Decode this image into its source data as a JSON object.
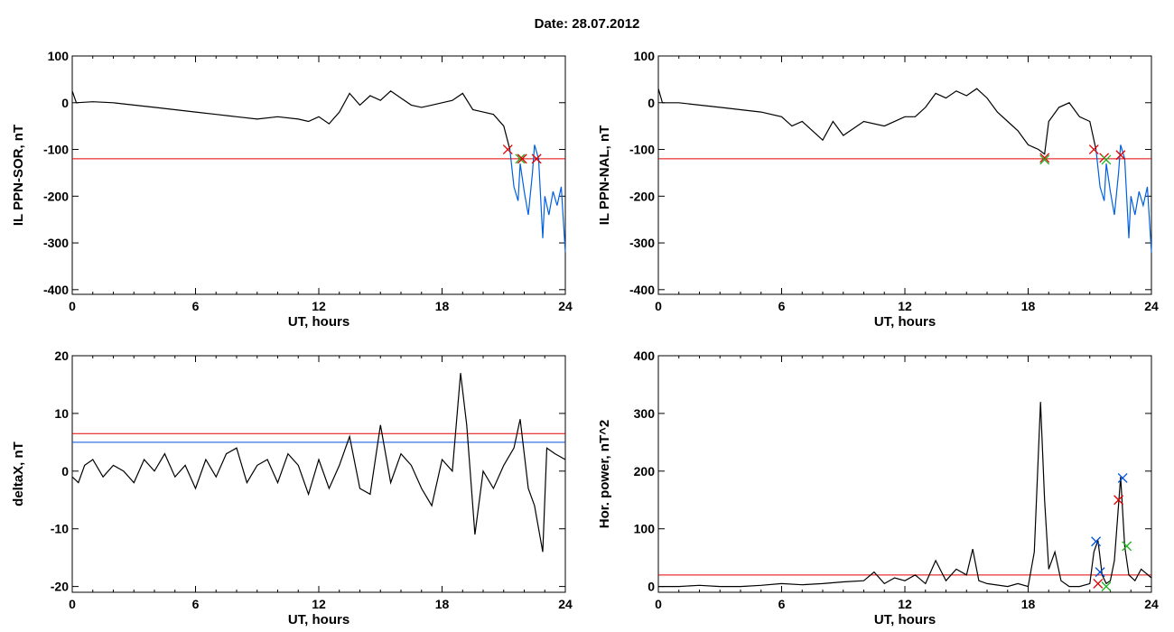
{
  "header": {
    "title": "Date:  28.07.2012"
  },
  "colors": {
    "trace": "#000000",
    "threshold_red": "#e00000",
    "threshold_blue": "#0050e0",
    "highlight": "#0060e0",
    "marker_green": "#20b020"
  },
  "chart_data": [
    {
      "type": "line",
      "xlabel": "UT, hours",
      "ylabel": "IL PPN-SOR, nT",
      "xlim": [
        0,
        24
      ],
      "ylim": [
        -410,
        100
      ],
      "xticks": [
        0,
        6,
        12,
        18,
        24
      ],
      "xtick_labels": [
        "0",
        "6",
        "12",
        "18",
        "24"
      ],
      "yticks": [
        100,
        0,
        -100,
        -200,
        -300,
        -400
      ],
      "ytick_labels": [
        "100",
        "0",
        "-100",
        "-200",
        "-300",
        "-400"
      ],
      "thresholds": [
        {
          "value": -120,
          "color": "#e00000"
        }
      ],
      "series": [
        {
          "color": "#000000",
          "x": [
            0,
            0.2,
            1,
            2,
            3,
            4,
            5,
            6,
            7,
            8,
            9,
            10,
            11,
            11.5,
            12,
            12.5,
            13,
            13.5,
            14,
            14.5,
            15,
            15.5,
            16,
            16.5,
            17,
            17.5,
            18,
            18.5,
            19,
            19.5,
            20,
            20.5,
            21,
            21.3
          ],
          "y": [
            25,
            0,
            2,
            0,
            -5,
            -10,
            -15,
            -20,
            -25,
            -30,
            -35,
            -30,
            -35,
            -40,
            -30,
            -45,
            -20,
            20,
            -5,
            15,
            5,
            25,
            10,
            -5,
            -10,
            -5,
            0,
            5,
            20,
            -15,
            -20,
            -25,
            -50,
            -100
          ]
        },
        {
          "color": "#0060e0",
          "x": [
            21.3,
            21.5,
            21.7,
            21.8,
            22,
            22.2,
            22.4,
            22.5,
            22.7,
            22.9,
            23,
            23.2,
            23.4,
            23.6,
            23.8,
            24
          ],
          "y": [
            -100,
            -180,
            -210,
            -130,
            -190,
            -240,
            -150,
            -90,
            -120,
            -290,
            -200,
            -240,
            -190,
            -220,
            -180,
            -320
          ]
        }
      ],
      "markers": [
        {
          "x": 21.2,
          "y": -100,
          "color": "#e00000"
        },
        {
          "x": 21.8,
          "y": -120,
          "color": "#20b020"
        },
        {
          "x": 21.9,
          "y": -120,
          "color": "#e00000"
        },
        {
          "x": 22.6,
          "y": -120,
          "color": "#e00000"
        }
      ]
    },
    {
      "type": "line",
      "xlabel": "UT, hours",
      "ylabel": "IL PPN-NAL, nT",
      "xlim": [
        0,
        24
      ],
      "ylim": [
        -410,
        100
      ],
      "xticks": [
        0,
        6,
        12,
        18,
        24
      ],
      "xtick_labels": [
        "0",
        "6",
        "12",
        "18",
        "24"
      ],
      "yticks": [
        100,
        0,
        -100,
        -200,
        -300,
        -400
      ],
      "ytick_labels": [
        "100",
        "0",
        "-100",
        "-200",
        "-300",
        "-400"
      ],
      "thresholds": [
        {
          "value": -120,
          "color": "#e00000"
        }
      ],
      "series": [
        {
          "color": "#000000",
          "x": [
            0,
            0.2,
            1,
            2,
            3,
            4,
            5,
            6,
            6.5,
            7,
            7.5,
            8,
            8.5,
            9,
            10,
            11,
            12,
            12.5,
            13,
            13.5,
            14,
            14.5,
            15,
            15.5,
            16,
            16.5,
            17,
            17.5,
            18,
            18.5,
            18.8,
            19,
            19.5,
            20,
            20.5,
            21,
            21.3
          ],
          "y": [
            30,
            0,
            0,
            -5,
            -10,
            -15,
            -20,
            -30,
            -50,
            -40,
            -60,
            -80,
            -40,
            -70,
            -40,
            -50,
            -30,
            -30,
            -10,
            20,
            10,
            25,
            15,
            30,
            10,
            -20,
            -40,
            -60,
            -90,
            -100,
            -110,
            -40,
            -10,
            0,
            -30,
            -40,
            -100
          ]
        },
        {
          "color": "#0060e0",
          "x": [
            21.3,
            21.5,
            21.7,
            21.8,
            22,
            22.2,
            22.4,
            22.5,
            22.7,
            22.9,
            23,
            23.2,
            23.4,
            23.6,
            23.8,
            24
          ],
          "y": [
            -100,
            -180,
            -210,
            -130,
            -190,
            -240,
            -150,
            -90,
            -120,
            -290,
            -200,
            -240,
            -190,
            -220,
            -180,
            -320
          ]
        }
      ],
      "markers": [
        {
          "x": 18.8,
          "y": -118,
          "color": "#e00000"
        },
        {
          "x": 18.8,
          "y": -122,
          "color": "#20b020"
        },
        {
          "x": 21.2,
          "y": -100,
          "color": "#e00000"
        },
        {
          "x": 21.7,
          "y": -118,
          "color": "#e00000"
        },
        {
          "x": 21.8,
          "y": -122,
          "color": "#20b020"
        },
        {
          "x": 22.5,
          "y": -112,
          "color": "#e00000"
        }
      ]
    },
    {
      "type": "line",
      "xlabel": "UT, hours",
      "ylabel": "deltaX, nT",
      "xlim": [
        0,
        24
      ],
      "ylim": [
        -21,
        20
      ],
      "xticks": [
        0,
        6,
        12,
        18,
        24
      ],
      "xtick_labels": [
        "0",
        "6",
        "12",
        "18",
        "24"
      ],
      "yticks": [
        20,
        10,
        0,
        -10,
        -20
      ],
      "ytick_labels": [
        "20",
        "10",
        "0",
        "-10",
        "-20"
      ],
      "thresholds": [
        {
          "value": 6.5,
          "color": "#e00000"
        },
        {
          "value": 5,
          "color": "#0050e0"
        }
      ],
      "series": [
        {
          "color": "#000000",
          "x": [
            0,
            0.3,
            0.6,
            1,
            1.5,
            2,
            2.5,
            3,
            3.5,
            4,
            4.5,
            5,
            5.5,
            6,
            6.5,
            7,
            7.5,
            8,
            8.5,
            9,
            9.5,
            10,
            10.5,
            11,
            11.5,
            12,
            12.5,
            13,
            13.5,
            14,
            14.5,
            15,
            15.5,
            16,
            16.5,
            17,
            17.5,
            18,
            18.5,
            18.9,
            19.2,
            19.6,
            20,
            20.5,
            21,
            21.5,
            21.8,
            22.2,
            22.5,
            22.9,
            23.1,
            23.5,
            24
          ],
          "y": [
            -1,
            -2,
            1,
            2,
            -1,
            1,
            0,
            -2,
            2,
            0,
            3,
            -1,
            1,
            -3,
            2,
            -1,
            3,
            4,
            -2,
            1,
            2,
            -2,
            3,
            1,
            -4,
            2,
            -3,
            1,
            6,
            -3,
            -4,
            8,
            -2,
            3,
            1,
            -3,
            -6,
            2,
            0,
            17,
            8,
            -11,
            0,
            -3,
            1,
            4,
            9,
            -3,
            -6,
            -14,
            4,
            3,
            2
          ]
        }
      ],
      "markers": []
    },
    {
      "type": "line",
      "xlabel": "UT, hours",
      "ylabel": "Hor. power, nT^2",
      "xlim": [
        0,
        24
      ],
      "ylim": [
        -10,
        400
      ],
      "xticks": [
        0,
        6,
        12,
        18,
        24
      ],
      "xtick_labels": [
        "0",
        "6",
        "12",
        "18",
        "24"
      ],
      "yticks": [
        400,
        300,
        200,
        100,
        0
      ],
      "ytick_labels": [
        "400",
        "300",
        "200",
        "100",
        "0"
      ],
      "thresholds": [
        {
          "value": 20,
          "color": "#e00000"
        }
      ],
      "series": [
        {
          "color": "#000000",
          "x": [
            0,
            1,
            2,
            3,
            4,
            5,
            6,
            7,
            8,
            9,
            10,
            10.5,
            11,
            11.5,
            12,
            12.5,
            13,
            13.5,
            14,
            14.5,
            15,
            15.3,
            15.6,
            16,
            17,
            17.5,
            18,
            18.3,
            18.6,
            18.8,
            19,
            19.3,
            19.6,
            20,
            20.5,
            21,
            21.2,
            21.4,
            21.6,
            21.8,
            22,
            22.2,
            22.5,
            22.7,
            22.9,
            23.2,
            23.5,
            24
          ],
          "y": [
            0,
            0,
            2,
            0,
            0,
            2,
            5,
            3,
            5,
            8,
            10,
            25,
            5,
            15,
            10,
            20,
            5,
            45,
            10,
            30,
            20,
            65,
            10,
            5,
            0,
            5,
            0,
            60,
            320,
            150,
            30,
            60,
            10,
            0,
            0,
            5,
            60,
            80,
            20,
            5,
            10,
            45,
            190,
            70,
            20,
            10,
            30,
            15
          ]
        }
      ],
      "markers": [
        {
          "x": 21.3,
          "y": 78,
          "color": "#0050e0"
        },
        {
          "x": 21.5,
          "y": 25,
          "color": "#0050e0"
        },
        {
          "x": 21.4,
          "y": 5,
          "color": "#e00000"
        },
        {
          "x": 21.8,
          "y": 0,
          "color": "#20b020"
        },
        {
          "x": 22.4,
          "y": 150,
          "color": "#e00000"
        },
        {
          "x": 22.6,
          "y": 188,
          "color": "#0050e0"
        },
        {
          "x": 22.8,
          "y": 70,
          "color": "#20b020"
        }
      ]
    }
  ]
}
